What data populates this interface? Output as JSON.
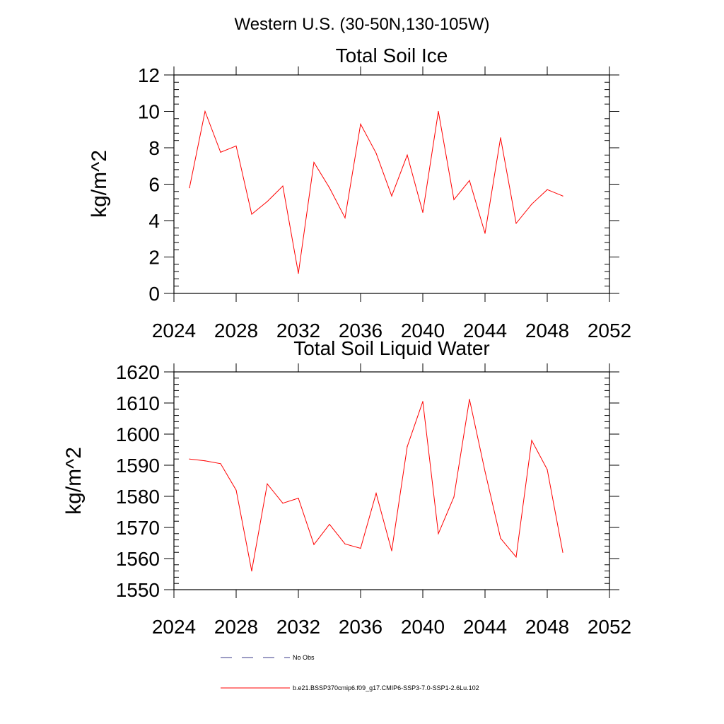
{
  "figure_title": "Western U.S. (30-50N,130-105W)",
  "chart_data": [
    {
      "type": "line",
      "title": "Total Soil Ice",
      "xlabel": "",
      "ylabel": "kg/m^2",
      "xlim": [
        2024,
        2052
      ],
      "ylim": [
        0,
        12
      ],
      "xticks": [
        2024,
        2028,
        2032,
        2036,
        2040,
        2044,
        2048,
        2052
      ],
      "xtick_labels": [
        "2024",
        "2028",
        "2032",
        "2036",
        "2040",
        "2044",
        "2048",
        "2052"
      ],
      "yticks": [
        0,
        2,
        4,
        6,
        8,
        10,
        12
      ],
      "ytick_labels": [
        "0",
        "2",
        "4",
        "6",
        "8",
        "10",
        "12"
      ],
      "grid": false,
      "x": [
        2025,
        2026,
        2027,
        2028,
        2029,
        2030,
        2031,
        2032,
        2033,
        2034,
        2035,
        2036,
        2037,
        2038,
        2039,
        2040,
        2041,
        2042,
        2043,
        2044,
        2045,
        2046,
        2047,
        2048,
        2049
      ],
      "series": [
        {
          "values": [
            5.8,
            10.0,
            7.75,
            8.1,
            4.35,
            5.05,
            5.9,
            1.1,
            7.2,
            5.8,
            4.15,
            9.3,
            7.7,
            5.35,
            7.6,
            4.45,
            10.0,
            5.15,
            6.2,
            3.3,
            8.55,
            3.85,
            4.9,
            5.7,
            5.35
          ],
          "color": "#ff0000"
        }
      ]
    },
    {
      "type": "line",
      "title": "Total Soil Liquid Water",
      "xlabel": "",
      "ylabel": "kg/m^2",
      "xlim": [
        2024,
        2052
      ],
      "ylim": [
        1550,
        1620
      ],
      "xticks": [
        2024,
        2028,
        2032,
        2036,
        2040,
        2044,
        2048,
        2052
      ],
      "xtick_labels": [
        "2024",
        "2028",
        "2032",
        "2036",
        "2040",
        "2044",
        "2048",
        "2052"
      ],
      "yticks": [
        1550,
        1560,
        1570,
        1580,
        1590,
        1600,
        1610,
        1620
      ],
      "ytick_labels": [
        "1550",
        "1560",
        "1570",
        "1580",
        "1590",
        "1600",
        "1610",
        "1620"
      ],
      "grid": false,
      "x": [
        2025,
        2026,
        2027,
        2028,
        2029,
        2030,
        2031,
        2032,
        2033,
        2034,
        2035,
        2036,
        2037,
        2038,
        2039,
        2040,
        2041,
        2042,
        2043,
        2044,
        2045,
        2046,
        2047,
        2048,
        2049
      ],
      "series": [
        {
          "values": [
            1592.0,
            1591.4,
            1590.5,
            1582.0,
            1556.0,
            1584.0,
            1577.8,
            1579.4,
            1564.5,
            1571.0,
            1564.7,
            1563.3,
            1581.0,
            1562.5,
            1596.0,
            1610.5,
            1568.0,
            1579.8,
            1611.2,
            1588.0,
            1566.5,
            1560.5,
            1598.0,
            1588.6,
            1562.0
          ],
          "color": "#ff0000"
        }
      ]
    }
  ],
  "legend": {
    "placement": "bottom",
    "entries": [
      {
        "label": "No Obs",
        "style": "dashed",
        "color": "#3a3a8a"
      },
      {
        "label": "b.e21.BSSP370cmip6.f09_g17.CMIP6-SSP3-7.0-SSP1-2.6Lu.102",
        "style": "solid",
        "color": "#ff0000"
      }
    ]
  }
}
